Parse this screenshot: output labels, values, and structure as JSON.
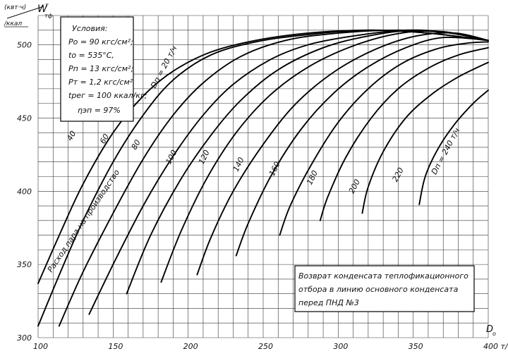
{
  "chart_data": {
    "type": "line",
    "y_unit_top": "(квт·ч)",
    "y_unit_bottom": "/ккал",
    "y_symbol": "W",
    "y_symbol_sup": "т",
    "y_symbol_sub": "тф",
    "x_symbol": "D",
    "x_symbol_sub": "o",
    "x_ticks": [
      "100",
      "150",
      "200",
      "250",
      "300",
      "350",
      "400 т/ч"
    ],
    "y_ticks": [
      "300",
      "350",
      "400",
      "450",
      "500"
    ],
    "xlim": [
      100,
      400
    ],
    "ylim": [
      300,
      520
    ],
    "grid": true,
    "conditions": {
      "title": "Условия:",
      "lines": [
        "Ро = 90 кгс/см²;",
        "tо = 535°C,",
        "Рп = 13 кгс/см²;",
        "Рт = 1,2 кгс/см²",
        "tрег = 100 ккал/кг;",
        "ηэп = 97%"
      ]
    },
    "rotated_label": "Расход пара на производство",
    "note": {
      "lines": [
        "Возврат конденсата теплофикационного",
        "отбора в линию основного конденсата",
        "перед ПНД №3"
      ]
    },
    "series": [
      {
        "name": "Dп = 20 т/ч",
        "x": [
          100,
          115,
          130,
          150,
          170,
          190,
          215,
          245,
          280,
          320,
          360,
          400
        ],
        "y": [
          337,
          372,
          405,
          440,
          465,
          482,
          495,
          503,
          508,
          510,
          508,
          503
        ]
      },
      {
        "name": "40",
        "x": [
          100,
          115,
          130,
          150,
          170,
          190,
          215,
          245,
          280,
          320,
          360,
          400
        ],
        "y": [
          308,
          345,
          380,
          420,
          452,
          476,
          493,
          502,
          507,
          510,
          508,
          503
        ]
      },
      {
        "name": "60",
        "x": [
          114,
          130,
          150,
          170,
          190,
          210,
          235,
          265,
          300,
          340,
          375,
          400
        ],
        "y": [
          308,
          345,
          385,
          422,
          452,
          474,
          492,
          503,
          508,
          510,
          508,
          503
        ]
      },
      {
        "name": "80",
        "x": [
          134,
          150,
          170,
          190,
          210,
          230,
          255,
          280,
          310,
          345,
          375,
          400
        ],
        "y": [
          316,
          350,
          390,
          424,
          452,
          473,
          490,
          500,
          506,
          510,
          508,
          503
        ]
      },
      {
        "name": "100",
        "x": [
          159,
          175,
          195,
          215,
          235,
          260,
          290,
          320,
          350,
          375,
          400
        ],
        "y": [
          330,
          370,
          408,
          438,
          462,
          483,
          498,
          506,
          510,
          508,
          503
        ]
      },
      {
        "name": "120",
        "x": [
          182,
          195,
          212,
          232,
          255,
          282,
          312,
          342,
          370,
          400
        ],
        "y": [
          338,
          372,
          408,
          440,
          466,
          486,
          500,
          508,
          509,
          503
        ]
      },
      {
        "name": "140",
        "x": [
          206,
          215,
          230,
          250,
          272,
          298,
          325,
          352,
          378,
          400
        ],
        "y": [
          343,
          368,
          400,
          432,
          460,
          482,
          497,
          506,
          508,
          503
        ]
      },
      {
        "name": "160",
        "x": [
          232,
          240,
          255,
          275,
          297,
          320,
          345,
          370,
          400
        ],
        "y": [
          356,
          378,
          410,
          442,
          467,
          485,
          498,
          505,
          503
        ]
      },
      {
        "name": "180",
        "x": [
          261,
          268,
          282,
          300,
          320,
          342,
          365,
          385,
          400
        ],
        "y": [
          370,
          390,
          418,
          447,
          470,
          487,
          497,
          501,
          502
        ]
      },
      {
        "name": "200",
        "x": [
          288,
          293,
          305,
          322,
          340,
          360,
          380,
          400
        ],
        "y": [
          380,
          396,
          423,
          450,
          470,
          484,
          493,
          498
        ]
      },
      {
        "name": "220",
        "x": [
          316,
          320,
          330,
          345,
          362,
          380,
          400
        ],
        "y": [
          385,
          403,
          427,
          450,
          466,
          478,
          488
        ]
      },
      {
        "name": "Dп = 240 т/ч",
        "x": [
          354,
          358,
          366,
          377,
          390,
          400
        ],
        "y": [
          391,
          410,
          428,
          445,
          460,
          469
        ]
      }
    ]
  }
}
